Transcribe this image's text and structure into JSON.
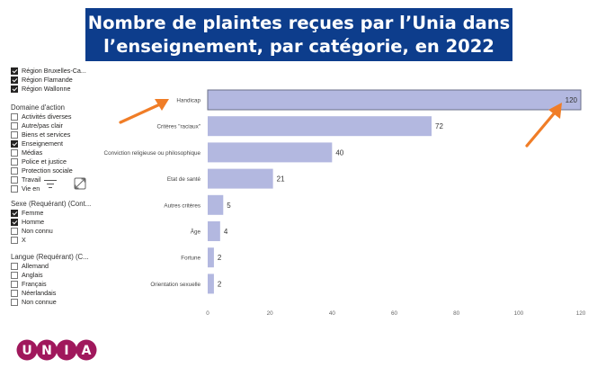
{
  "title": {
    "line1": "Nombre de plaintes reçues par l’Unia dans",
    "line2": "l’enseignement, par catégorie, en 2022"
  },
  "filters": {
    "region": {
      "items": [
        {
          "label": "Région Bruxelles-Ca...",
          "checked": true
        },
        {
          "label": "Région Flamande",
          "checked": true
        },
        {
          "label": "Région Wallonne",
          "checked": true
        }
      ]
    },
    "domaine": {
      "title": "Domaine d'action",
      "items": [
        {
          "label": "Activités diverses",
          "checked": false
        },
        {
          "label": "Autre/pas clair",
          "checked": false
        },
        {
          "label": "Biens et services",
          "checked": false
        },
        {
          "label": "Enseignement",
          "checked": true
        },
        {
          "label": "Médias",
          "checked": false
        },
        {
          "label": "Police et justice",
          "checked": false
        },
        {
          "label": "Protection sociale",
          "checked": false
        },
        {
          "label": "Travail",
          "checked": false
        },
        {
          "label": "Vie en",
          "checked": false
        }
      ]
    },
    "sexe": {
      "title": "Sexe (Requérant) (Cont...",
      "items": [
        {
          "label": "Femme",
          "checked": true
        },
        {
          "label": "Homme",
          "checked": true
        },
        {
          "label": "Non connu",
          "checked": false
        },
        {
          "label": "X",
          "checked": false
        }
      ]
    },
    "langue": {
      "title": "Langue (Requérant) (C...",
      "items": [
        {
          "label": "Allemand",
          "checked": false
        },
        {
          "label": "Anglais",
          "checked": false
        },
        {
          "label": "Français",
          "checked": false
        },
        {
          "label": "Néerlandais",
          "checked": false
        },
        {
          "label": "Non connue",
          "checked": false
        }
      ]
    }
  },
  "toolbar": {
    "filter_icon": "filter-lines-icon",
    "expand_icon": "expand-icon"
  },
  "logo": {
    "letters": [
      "U",
      "N",
      "I",
      "A"
    ],
    "color": "#a0185c"
  },
  "colors": {
    "bar": "#b3b8e0",
    "bar_highlight": "#b3b8e0",
    "arrow": "#f07d27",
    "banner": "#0d3d8c"
  },
  "chart_data": {
    "type": "bar",
    "orientation": "horizontal",
    "categories": [
      "Handicap",
      "Critères \"raciaux\"",
      "Conviction religieuse ou philosophique",
      "Etat de santé",
      "Autres critères",
      "Âge",
      "Fortune",
      "Orientation sexuelle"
    ],
    "values": [
      120,
      72,
      40,
      21,
      5,
      4,
      2,
      2
    ],
    "xlim": [
      0,
      120
    ],
    "xticks": [
      0,
      20,
      40,
      60,
      80,
      100,
      120
    ],
    "grid": false,
    "highlighted_category": "Handicap"
  }
}
